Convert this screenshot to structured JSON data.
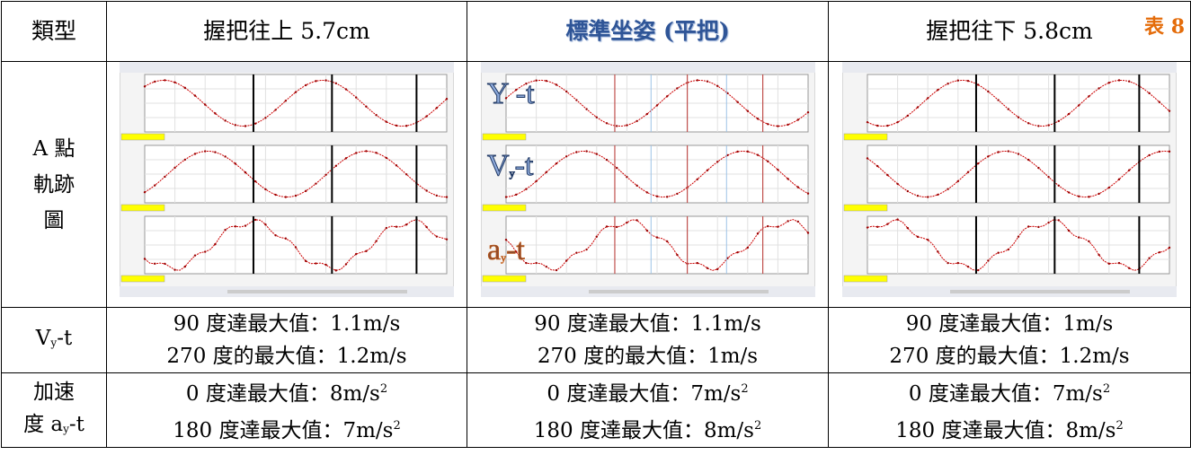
{
  "table": {
    "header": [
      "類型",
      "握把往上 5.7cm",
      "標準坐姿 (平把)",
      "握把往下 5.8cm"
    ],
    "table_number": "表 8",
    "trajectory_row": {
      "label_lines": [
        "A 點",
        "軌跡",
        "圖"
      ],
      "plot_labels": [
        {
          "main": "Y -t"
        },
        {
          "main": "V",
          "sub": "y",
          "tail": "-t"
        },
        {
          "main": "a",
          "sub": "y",
          "tail": "-t"
        }
      ]
    },
    "velocity_row": {
      "label": {
        "main": "V",
        "sub": "y",
        "tail": "-t"
      },
      "cells": [
        [
          "90 度達最大值：1.1m/s",
          "270 度的最大值：1.2m/s"
        ],
        [
          "90 度達最大值：1.1m/s",
          "270 度的最大值：1m/s"
        ],
        [
          "90 度達最大值：1m/s",
          "270 度的最大值：1.2m/s"
        ]
      ]
    },
    "acceleration_row": {
      "label_lines": [
        {
          "main": "加速"
        },
        {
          "main": "度 a",
          "sub": "y",
          "tail": "-t"
        }
      ],
      "cells": [
        [
          {
            "text": "0 度達最大值：8m/s",
            "sup": "2"
          },
          {
            "text": "180 度達最大值：7m/s",
            "sup": "2"
          }
        ],
        [
          {
            "text": "0 度達最大值：7m/s",
            "sup": "2"
          },
          {
            "text": "180 度達最大值：8m/s",
            "sup": "2"
          }
        ],
        [
          {
            "text": "0 度達最大值：7m/s",
            "sup": "2"
          },
          {
            "text": "180 度達最大值：8m/s",
            "sup": "2"
          }
        ]
      ]
    }
  }
}
